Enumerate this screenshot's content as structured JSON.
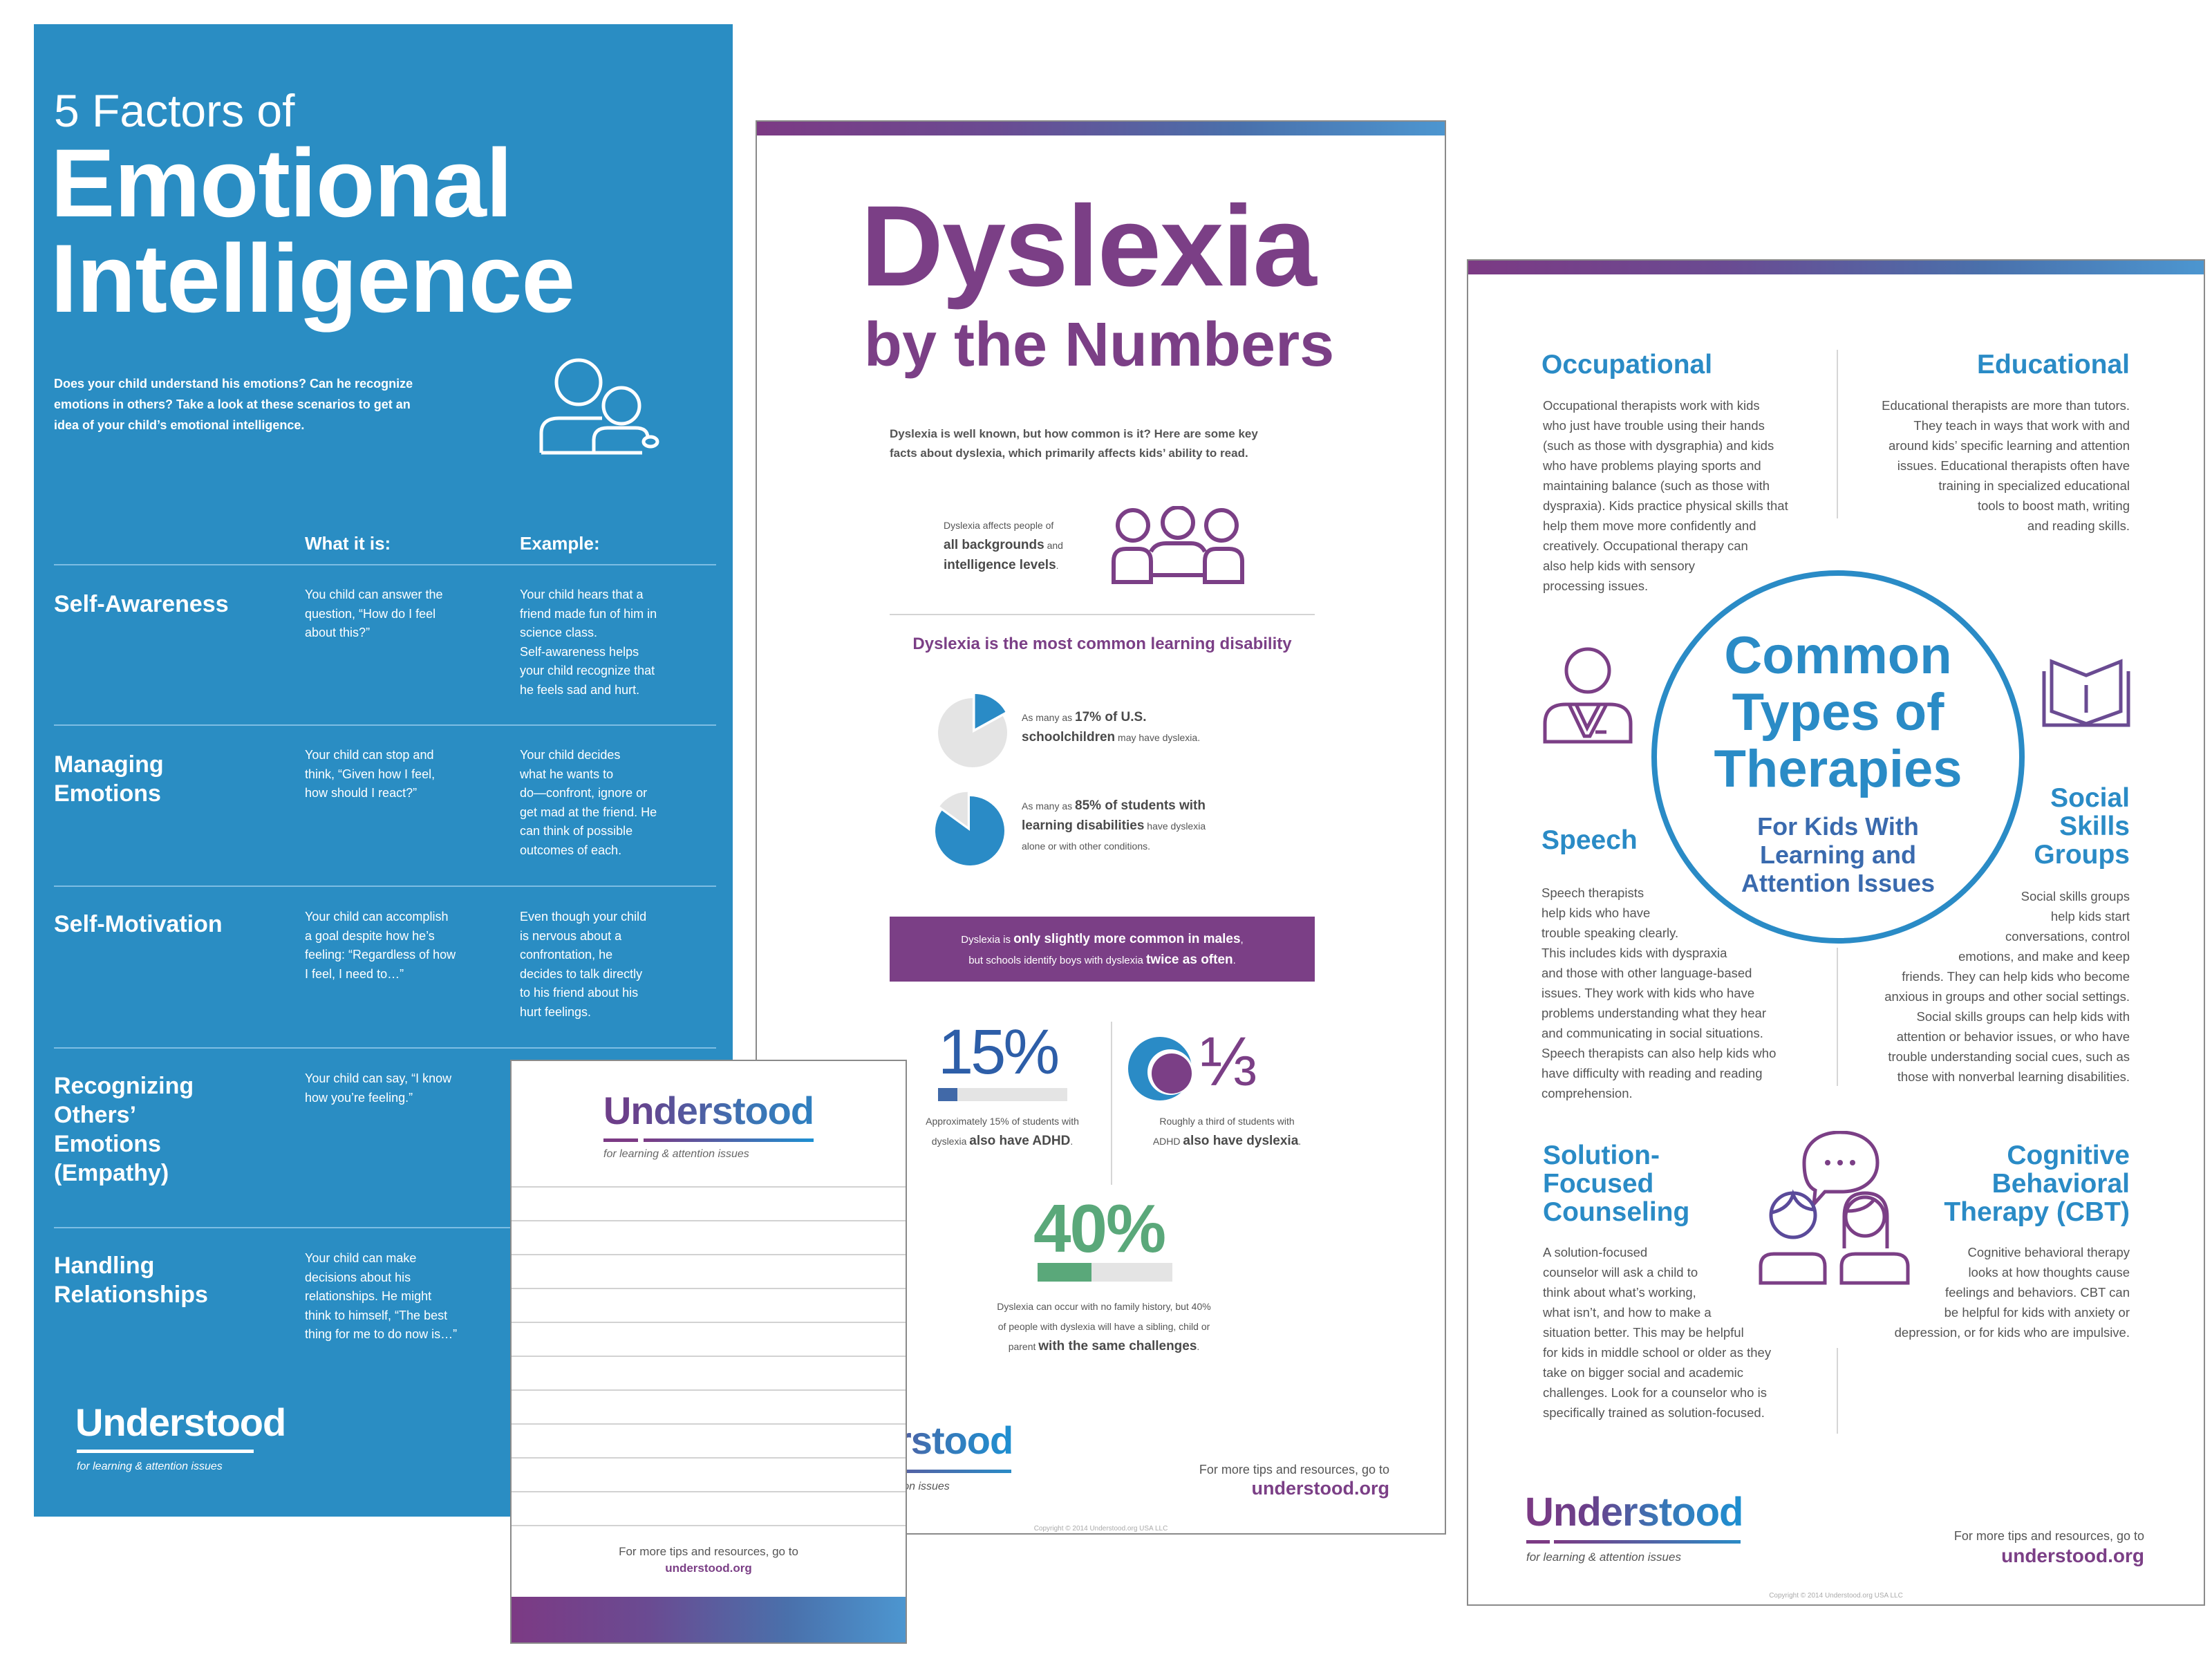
{
  "emotional": {
    "title_small": "5 Factors of",
    "title_line1": "Emotional",
    "title_line2": "Intelligence",
    "intro": [
      "Does your child understand his emotions? Can he recognize",
      "emotions in others? Take a look at these scenarios to get an",
      "idea of your child’s emotional intelligence."
    ],
    "col_what": "What it is:",
    "col_example": "Example:",
    "rows": [
      {
        "title": [
          "Self-Awareness"
        ],
        "what": [
          "You child can answer the",
          "question, “How do I feel",
          "about this?”"
        ],
        "example": [
          "Your child hears that a",
          "friend made fun of him in",
          "science class.",
          "Self-awareness helps",
          "your child recognize that",
          "he feels sad and hurt."
        ]
      },
      {
        "title": [
          "Managing",
          "Emotions"
        ],
        "what": [
          "Your child can stop and",
          "think, “Given how I feel,",
          "how should I react?”"
        ],
        "example": [
          "Your child decides",
          "what he wants to",
          "do—confront, ignore or",
          "get mad at the friend. He",
          "can think of possible",
          "outcomes of each."
        ]
      },
      {
        "title": [
          "Self-Motivation"
        ],
        "what": [
          "Your child can accomplish",
          "a goal despite how he’s",
          "feeling: “Regardless of how",
          "I feel, I need to…”"
        ],
        "example": [
          "Even though your child",
          "is nervous about a",
          "confrontation, he",
          "decides to talk directly",
          "to his friend about his",
          "hurt feelings."
        ]
      },
      {
        "title": [
          "Recognizing",
          "Others’",
          "Emotions",
          "(Empathy)"
        ],
        "what": [
          "Your child can say, “I know",
          "how you’re feeling.”"
        ],
        "example": []
      },
      {
        "title": [
          "Handling",
          "Relationships"
        ],
        "what": [
          "Your child can make",
          "decisions about his",
          "relationships. He might",
          "think to himself, “The best",
          "thing for me to do now is…”"
        ],
        "example": []
      }
    ],
    "logo": "Understood",
    "tagline": "for learning & attention issues",
    "colors": {
      "background": "#2a8dc3"
    }
  },
  "dyslexia": {
    "title_line1": "Dyslexia",
    "title_line2": "by the Numbers",
    "intro": [
      "Dyslexia is well known, but how common is it? Here are some key",
      "facts about dyslexia, which primarily affects kids’ ability to read."
    ],
    "affects": [
      [
        {
          "t": "Dyslexia affects people of",
          "b": false
        }
      ],
      [
        {
          "t": "all backgrounds",
          "b": true
        },
        {
          "t": " and",
          "b": false
        }
      ],
      [
        {
          "t": "intelligence levels",
          "b": true
        },
        {
          "t": ".",
          "b": false
        }
      ]
    ],
    "section_heading": "Dyslexia is the most common learning disability",
    "fact1": {
      "percent": 17,
      "lines": [
        [
          {
            "t": "As many as ",
            "b": false
          },
          {
            "t": "17% of U.S.",
            "b": true
          }
        ],
        [
          {
            "t": "schoolchildren",
            "b": true
          },
          {
            "t": " may have dyslexia.",
            "b": false
          }
        ]
      ]
    },
    "fact2": {
      "percent": 85,
      "lines": [
        [
          {
            "t": "As many as ",
            "b": false
          },
          {
            "t": "85% of students with",
            "b": true
          }
        ],
        [
          {
            "t": "learning disabilities",
            "b": true
          },
          {
            "t": " have dyslexia",
            "b": false
          }
        ],
        [
          {
            "t": "alone or with other conditions.",
            "b": false
          }
        ]
      ]
    },
    "males_box": [
      [
        {
          "t": "Dyslexia is ",
          "b": false
        },
        {
          "t": "only slightly more common in males",
          "b": true
        },
        {
          "t": ",",
          "b": false
        }
      ],
      [
        {
          "t": "but schools identify boys with dyslexia ",
          "b": false
        },
        {
          "t": "twice as often",
          "b": true
        },
        {
          "t": ".",
          "b": false
        }
      ]
    ],
    "stat_adhd": {
      "value": "15%",
      "percent": 15,
      "lines": [
        [
          {
            "t": "Approximately 15% of students with",
            "b": false
          }
        ],
        [
          {
            "t": "dyslexia ",
            "b": false
          },
          {
            "t": "also have ADHD",
            "b": true
          },
          {
            "t": ".",
            "b": false
          }
        ]
      ]
    },
    "stat_third": {
      "value": "⅓",
      "lines": [
        [
          {
            "t": "Roughly a third of students with",
            "b": false
          }
        ],
        [
          {
            "t": "ADHD ",
            "b": false
          },
          {
            "t": "also have dyslexia",
            "b": true
          },
          {
            "t": ".",
            "b": false
          }
        ]
      ]
    },
    "stat_family": {
      "value": "40%",
      "percent": 40,
      "lines": [
        [
          {
            "t": "Dyslexia can occur with no family history, but 40%",
            "b": false
          }
        ],
        [
          {
            "t": "of people with dyslexia will have a sibling, child or",
            "b": false
          }
        ],
        [
          {
            "t": "parent ",
            "b": false
          },
          {
            "t": "with the same challenges",
            "b": true
          },
          {
            "t": ".",
            "b": false
          }
        ]
      ]
    },
    "logo": "Understood",
    "tagline": "for learning & attention issues",
    "more_tips": "For more tips and resources, go to",
    "url": "understood.org",
    "copyright": "Copyright © 2014 Understood.org USA LLC",
    "colors": {
      "purple": "#7b3f86",
      "blue": "#2a8bc6",
      "green": "#5aa87a",
      "dark_blue": "#4169a8",
      "track": "#e4e4e4"
    }
  },
  "notepad": {
    "logo": "Understood",
    "tagline": "for learning & attention issues",
    "more_tips": "For more tips and resources, go to",
    "url": "understood.org"
  },
  "therapies": {
    "title": [
      "Common",
      "Types of",
      "Therapies"
    ],
    "subtitle": [
      "For Kids With",
      "Learning and",
      "Attention Issues"
    ],
    "occupational": {
      "heading": [
        "Occupational"
      ],
      "text": [
        "Occupational therapists work with kids",
        "who just have trouble using their hands",
        "(such as those with dysgraphia) and kids",
        "who have problems playing sports and",
        "maintaining balance (such as those with",
        "dyspraxia). Kids practice physical skills that",
        "help them move more confidently and",
        "creatively. Occupational therapy can",
        "also help kids with sensory",
        "processing issues."
      ]
    },
    "educational": {
      "heading": [
        "Educational"
      ],
      "text": [
        "Educational therapists are more than tutors.",
        "They teach in ways that work with and",
        "around kids’ specific learning and attention",
        "issues. Educational therapists often have",
        "training in specialized educational",
        "tools to boost math, writing",
        "and reading skills."
      ]
    },
    "speech": {
      "heading": [
        "Speech"
      ],
      "text": [
        "Speech therapists",
        "help kids who have",
        "trouble speaking clearly.",
        "This includes kids with dyspraxia",
        "and those with other language-based",
        "issues. They work with kids who have",
        "problems understanding what they hear",
        "and communicating in social situations.",
        "Speech therapists can also help kids who",
        "have difficulty with reading and reading",
        "comprehension."
      ]
    },
    "social": {
      "heading": [
        "Social",
        "Skills",
        "Groups"
      ],
      "text": [
        "Social skills groups",
        "help kids start",
        "conversations, control",
        "emotions, and make and keep",
        "friends. They can help kids who become",
        "anxious in groups and other social settings.",
        "Social skills groups can help kids with",
        "attention or behavior issues, or who have",
        "trouble understanding social cues, such as",
        "those with nonverbal learning disabilities."
      ]
    },
    "solution": {
      "heading": [
        "Solution-",
        "Focused",
        "Counseling"
      ],
      "text": [
        "A solution-focused",
        "counselor will ask a child to",
        "think about what’s working,",
        "what isn’t, and how to make a",
        "situation better. This may be helpful",
        "for kids in middle school or older as they",
        "take on bigger social and academic",
        "challenges. Look for a counselor who is",
        "specifically trained as solution-focused."
      ]
    },
    "cbt": {
      "heading": [
        "Cognitive",
        "Behavioral",
        "Therapy (CBT)"
      ],
      "text": [
        "Cognitive behavioral therapy",
        "looks at how thoughts cause",
        "feelings and behaviors. CBT can",
        "be helpful for kids with anxiety or",
        "depression, or for kids who are impulsive."
      ]
    },
    "logo": "Understood",
    "tagline": "for learning & attention issues",
    "more_tips": "For more tips and resources, go to",
    "url": "understood.org",
    "copyright": "Copyright © 2014 Understood.org USA LLC",
    "colors": {
      "blue": "#2a8bc6",
      "subtitle_blue": "#3a6aae",
      "icon_purple": "#7b3f86"
    }
  }
}
